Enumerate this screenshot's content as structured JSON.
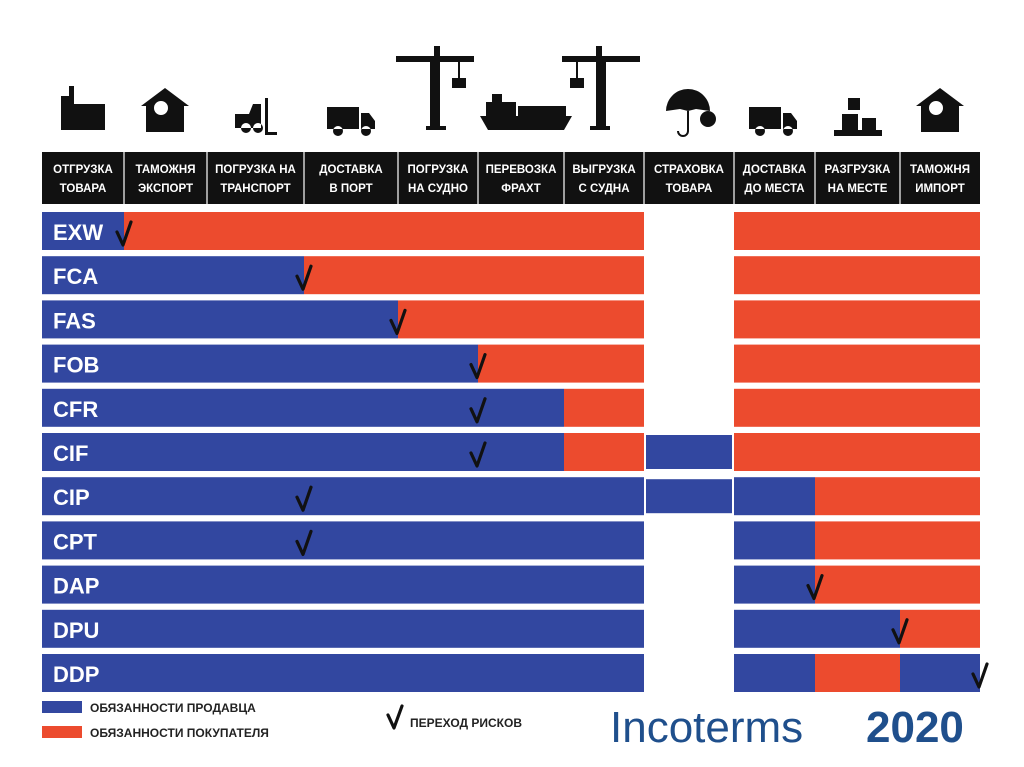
{
  "colors": {
    "seller": "#3247a0",
    "buyer": "#ec4b2e",
    "insurance_gap": "#ffffff",
    "header_bg": "#111111",
    "brand": "#1f4f8c"
  },
  "chart_data": {
    "type": "table",
    "columns": [
      {
        "line1": "ОТГРУЗКА",
        "line2": "ТОВАРА",
        "icon": "factory-icon"
      },
      {
        "line1": "ТАМОЖНЯ",
        "line2": "ЭКСПОРТ",
        "icon": "customs-house-icon"
      },
      {
        "line1": "ПОГРУЗКА НА",
        "line2": "ТРАНСПОРТ",
        "icon": "forklift-icon"
      },
      {
        "line1": "ДОСТАВКА",
        "line2": "В ПОРТ",
        "icon": "truck-icon"
      },
      {
        "line1": "ПОГРУЗКА",
        "line2": "НА СУДНО",
        "icon": "port-crane-icon"
      },
      {
        "line1": "ПЕРЕВОЗКА",
        "line2": "ФРАХТ",
        "icon": "cargo-ship-icon"
      },
      {
        "line1": "ВЫГРУЗКА",
        "line2": "С СУДНА",
        "icon": "port-crane-icon"
      },
      {
        "line1": "СТРАХОВКА",
        "line2": "ТОВАРА",
        "icon": "umbrella-dollar-icon"
      },
      {
        "line1": "ДОСТАВКА",
        "line2": "ДО МЕСТА",
        "icon": "truck-icon"
      },
      {
        "line1": "РАЗГРУЗКА",
        "line2": "НА МЕСТЕ",
        "icon": "unloading-pallet-icon"
      },
      {
        "line1": "ТАМОЖНЯ",
        "line2": "ИМПОРТ",
        "icon": "customs-house-icon"
      }
    ],
    "rows": [
      {
        "term": "EXW",
        "seller_until": 1,
        "risk_at": 1,
        "insurance": "buyer"
      },
      {
        "term": "FCA",
        "seller_until": 3,
        "risk_at": 3,
        "insurance": "buyer"
      },
      {
        "term": "FAS",
        "seller_until": 4,
        "risk_at": 4,
        "insurance": "buyer"
      },
      {
        "term": "FOB",
        "seller_until": 5,
        "risk_at": 5,
        "insurance": "buyer"
      },
      {
        "term": "CFR",
        "seller_until": 6,
        "risk_at": 5,
        "insurance": "buyer"
      },
      {
        "term": "CIF",
        "seller_until": 6,
        "risk_at": 5,
        "insurance": "seller"
      },
      {
        "term": "CIP",
        "seller_until": 9,
        "risk_at": 3,
        "insurance": "seller"
      },
      {
        "term": "CPT",
        "seller_until": 9,
        "risk_at": 3,
        "insurance": "buyer"
      },
      {
        "term": "DAP",
        "seller_until": 9,
        "risk_at": 9,
        "insurance": "buyer"
      },
      {
        "term": "DPU",
        "seller_until": 10,
        "risk_at": 10,
        "insurance": "buyer"
      },
      {
        "term": "DDP",
        "seller_until": 11,
        "risk_at": 11,
        "insurance": "buyer",
        "buyer_cols": [
          9
        ]
      }
    ]
  },
  "legend": {
    "seller_label": "ОБЯЗАННОСТИ ПРОДАВЦА",
    "buyer_label": "ОБЯЗАННОСТИ ПОКУПАТЕЛЯ",
    "risk_label": "ПЕРЕХОД РИСКОВ"
  },
  "brand": {
    "name": "Incoterms",
    "year": "2020"
  }
}
